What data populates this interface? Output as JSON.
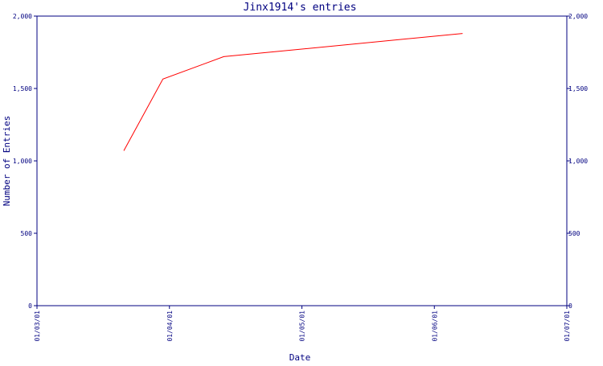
{
  "chart_data": {
    "type": "line",
    "title": "Jinx1914's entries",
    "xlabel": "Date",
    "ylabel": "Number of Entries",
    "x_ticks": [
      "01/03/01",
      "01/04/01",
      "01/05/01",
      "01/06/01",
      "01/07/01"
    ],
    "y_ticks": [
      "0",
      "500",
      "1,000",
      "1,500",
      "2,000"
    ],
    "ylim": [
      0,
      2000
    ],
    "xlim": [
      "2001-03-01",
      "2001-07-01"
    ],
    "grid": false,
    "colors": {
      "axis": "#000080",
      "line": "#ff0000",
      "background": "#ffffff"
    },
    "series": [
      {
        "x": [
          "2001-03-21",
          "2001-03-30",
          "2001-04-13",
          "2001-06-07"
        ],
        "y": [
          1070,
          1565,
          1720,
          1880
        ]
      }
    ]
  }
}
